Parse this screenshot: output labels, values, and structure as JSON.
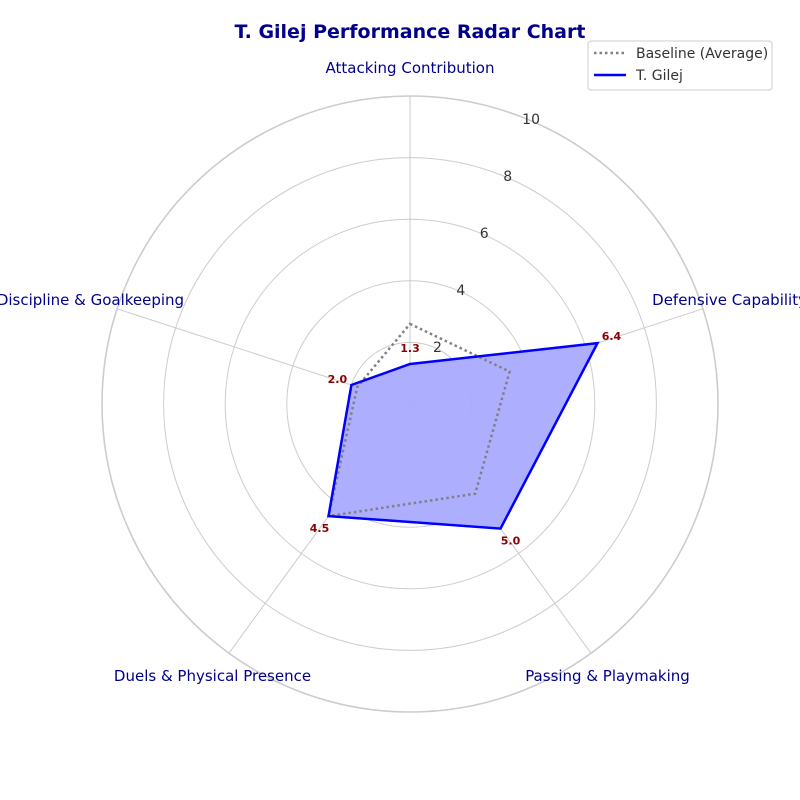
{
  "chart_data": {
    "type": "radar",
    "title": "T. Gilej Performance Radar Chart",
    "categories": [
      "Attacking Contribution",
      "Defensive Capability",
      "Passing & Playmaking",
      "Duels & Physical Presence",
      "Discipline & Goalkeeping"
    ],
    "series": [
      {
        "name": "Baseline (Average)",
        "values": [
          2.6,
          3.4,
          3.6,
          4.5,
          1.8
        ],
        "color": "#808080",
        "style": "dotted"
      },
      {
        "name": "T. Gilej",
        "values": [
          1.3,
          6.4,
          5.0,
          4.5,
          2.0
        ],
        "color": "#0000ff",
        "style": "solid",
        "fill": "#aaaaff"
      }
    ],
    "value_labels": [
      "1.3",
      "6.4",
      "5.0",
      "4.5",
      "2.0"
    ],
    "rlim": [
      0,
      10
    ],
    "rticks": [
      2,
      4,
      6,
      8,
      10
    ],
    "rtick_labels": [
      "2",
      "4",
      "6",
      "8",
      "10"
    ],
    "grid": true,
    "legend_position": "top-right",
    "grid_color": "#cccccc",
    "label_color": "#00008b",
    "value_label_color": "#8b0000"
  }
}
